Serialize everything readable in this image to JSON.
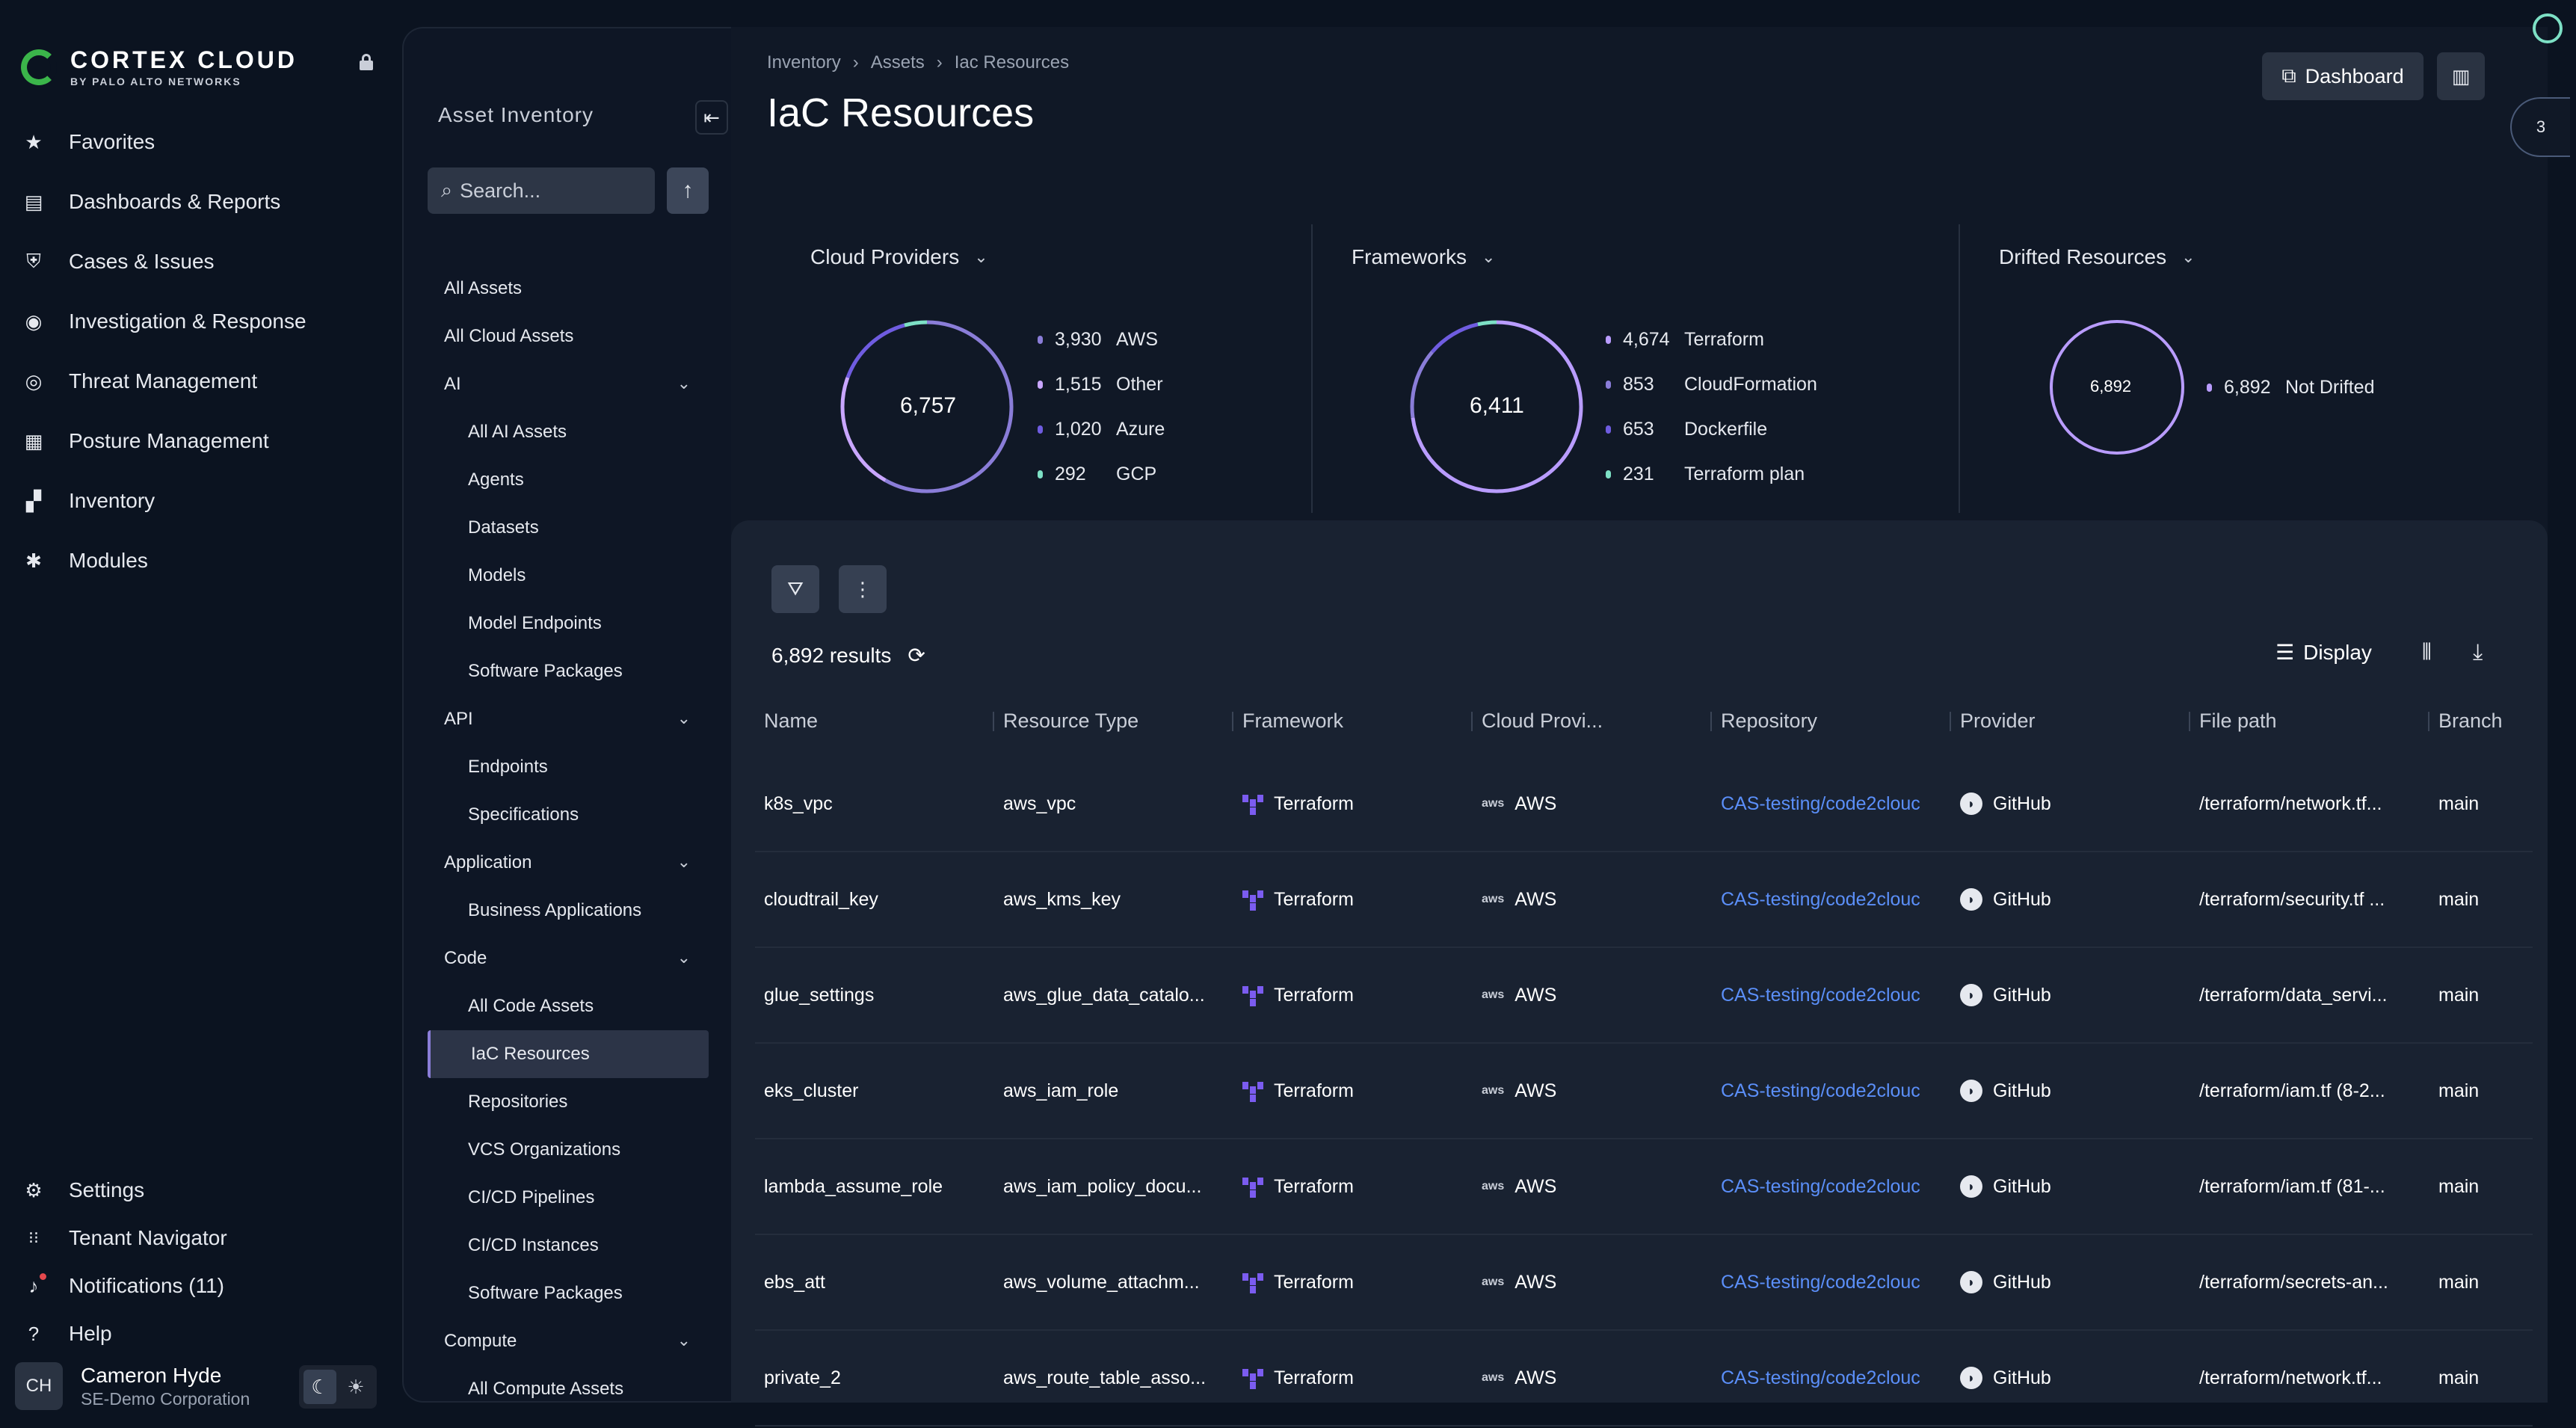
{
  "brand": {
    "name": "CORTEX CLOUD",
    "sub": "BY PALO ALTO NETWORKS"
  },
  "nav": {
    "main": [
      {
        "label": "Favorites",
        "icon": "star-icon",
        "glyph": "★"
      },
      {
        "label": "Dashboards & Reports",
        "icon": "dashboard-icon",
        "glyph": "▤"
      },
      {
        "label": "Cases & Issues",
        "icon": "shield-icon",
        "glyph": "⛨"
      },
      {
        "label": "Investigation & Response",
        "icon": "eye-icon",
        "glyph": "◉"
      },
      {
        "label": "Threat Management",
        "icon": "target-icon",
        "glyph": "◎"
      },
      {
        "label": "Posture Management",
        "icon": "clipboard-icon",
        "glyph": "▦"
      },
      {
        "label": "Inventory",
        "icon": "inventory-icon",
        "glyph": "▞"
      },
      {
        "label": "Modules",
        "icon": "modules-icon",
        "glyph": "✱"
      }
    ],
    "bottom": [
      {
        "label": "Settings",
        "icon": "gear-icon",
        "glyph": "⚙"
      },
      {
        "label": "Tenant Navigator",
        "icon": "grid-icon",
        "glyph": "⋮⋮⋮"
      },
      {
        "label": "Notifications (11)",
        "icon": "bell-icon",
        "glyph": "🔔"
      },
      {
        "label": "Help",
        "icon": "help-icon",
        "glyph": "?"
      }
    ]
  },
  "user": {
    "initials": "CH",
    "name": "Cameron Hyde",
    "org": "SE-Demo Corporation"
  },
  "subpanel": {
    "title": "Asset Inventory",
    "search_placeholder": "Search...",
    "items": [
      {
        "label": "All Assets",
        "level": 0
      },
      {
        "label": "All Cloud Assets",
        "level": 0
      },
      {
        "label": "AI",
        "level": 0,
        "expandable": true
      },
      {
        "label": "All AI Assets",
        "level": 1
      },
      {
        "label": "Agents",
        "level": 1
      },
      {
        "label": "Datasets",
        "level": 1
      },
      {
        "label": "Models",
        "level": 1
      },
      {
        "label": "Model Endpoints",
        "level": 1
      },
      {
        "label": "Software Packages",
        "level": 1
      },
      {
        "label": "API",
        "level": 0,
        "expandable": true
      },
      {
        "label": "Endpoints",
        "level": 1
      },
      {
        "label": "Specifications",
        "level": 1
      },
      {
        "label": "Application",
        "level": 0,
        "expandable": true
      },
      {
        "label": "Business Applications",
        "level": 1
      },
      {
        "label": "Code",
        "level": 0,
        "expandable": true
      },
      {
        "label": "All Code Assets",
        "level": 1
      },
      {
        "label": "IaC Resources",
        "level": 1,
        "active": true
      },
      {
        "label": "Repositories",
        "level": 1
      },
      {
        "label": "VCS Organizations",
        "level": 1
      },
      {
        "label": "CI/CD Pipelines",
        "level": 1
      },
      {
        "label": "CI/CD Instances",
        "level": 1
      },
      {
        "label": "Software Packages",
        "level": 1
      },
      {
        "label": "Compute",
        "level": 0,
        "expandable": true
      },
      {
        "label": "All Compute Assets",
        "level": 1
      }
    ]
  },
  "breadcrumb": [
    "Inventory",
    "Assets",
    "Iac Resources"
  ],
  "page_title": "IaC Resources",
  "header": {
    "dashboard_label": "Dashboard",
    "rail_count": "3"
  },
  "summary": {
    "cloud_providers": {
      "title": "Cloud Providers",
      "total": "6,757",
      "items": [
        {
          "value": "3,930",
          "label": "AWS",
          "color": "#8a7dd8",
          "count": 3930
        },
        {
          "value": "1,515",
          "label": "Other",
          "color": "#c9a6ff",
          "count": 1515
        },
        {
          "value": "1,020",
          "label": "Azure",
          "color": "#6f5ce0",
          "count": 1020
        },
        {
          "value": "292",
          "label": "GCP",
          "color": "#7de0c5",
          "count": 292
        }
      ]
    },
    "frameworks": {
      "title": "Frameworks",
      "total": "6,411",
      "items": [
        {
          "value": "4,674",
          "label": "Terraform",
          "color": "#b99cff",
          "count": 4674
        },
        {
          "value": "853",
          "label": "CloudFormation",
          "color": "#8a7dd8",
          "count": 853
        },
        {
          "value": "653",
          "label": "Dockerfile",
          "color": "#6f5ce0",
          "count": 653
        },
        {
          "value": "231",
          "label": "Terraform plan",
          "color": "#7de0c5",
          "count": 231
        }
      ]
    },
    "drifted": {
      "title": "Drifted Resources",
      "total": "6,892",
      "items": [
        {
          "value": "6,892",
          "label": "Not Drifted",
          "color": "#b99cff",
          "count": 6892
        }
      ]
    }
  },
  "table": {
    "results": "6,892 results",
    "display_label": "Display",
    "columns": [
      "Name",
      "Resource Type",
      "Framework",
      "Cloud Provi...",
      "Repository",
      "Provider",
      "File path",
      "Branch"
    ],
    "rows": [
      {
        "name": "k8s_vpc",
        "type": "aws_vpc",
        "framework": "Terraform",
        "cloud": "AWS",
        "repo": "CAS-testing/code2clouc",
        "provider": "GitHub",
        "path": "/terraform/network.tf...",
        "branch": "main"
      },
      {
        "name": "cloudtrail_key",
        "type": "aws_kms_key",
        "framework": "Terraform",
        "cloud": "AWS",
        "repo": "CAS-testing/code2clouc",
        "provider": "GitHub",
        "path": "/terraform/security.tf ...",
        "branch": "main"
      },
      {
        "name": "glue_settings",
        "type": "aws_glue_data_catalo...",
        "framework": "Terraform",
        "cloud": "AWS",
        "repo": "CAS-testing/code2clouc",
        "provider": "GitHub",
        "path": "/terraform/data_servi...",
        "branch": "main"
      },
      {
        "name": "eks_cluster",
        "type": "aws_iam_role",
        "framework": "Terraform",
        "cloud": "AWS",
        "repo": "CAS-testing/code2clouc",
        "provider": "GitHub",
        "path": "/terraform/iam.tf (8-2...",
        "branch": "main"
      },
      {
        "name": "lambda_assume_role",
        "type": "aws_iam_policy_docu...",
        "framework": "Terraform",
        "cloud": "AWS",
        "repo": "CAS-testing/code2clouc",
        "provider": "GitHub",
        "path": "/terraform/iam.tf (81-...",
        "branch": "main"
      },
      {
        "name": "ebs_att",
        "type": "aws_volume_attachm...",
        "framework": "Terraform",
        "cloud": "AWS",
        "repo": "CAS-testing/code2clouc",
        "provider": "GitHub",
        "path": "/terraform/secrets-an...",
        "branch": "main"
      },
      {
        "name": "private_2",
        "type": "aws_route_table_asso...",
        "framework": "Terraform",
        "cloud": "AWS",
        "repo": "CAS-testing/code2clouc",
        "provider": "GitHub",
        "path": "/terraform/network.tf...",
        "branch": "main"
      }
    ]
  }
}
